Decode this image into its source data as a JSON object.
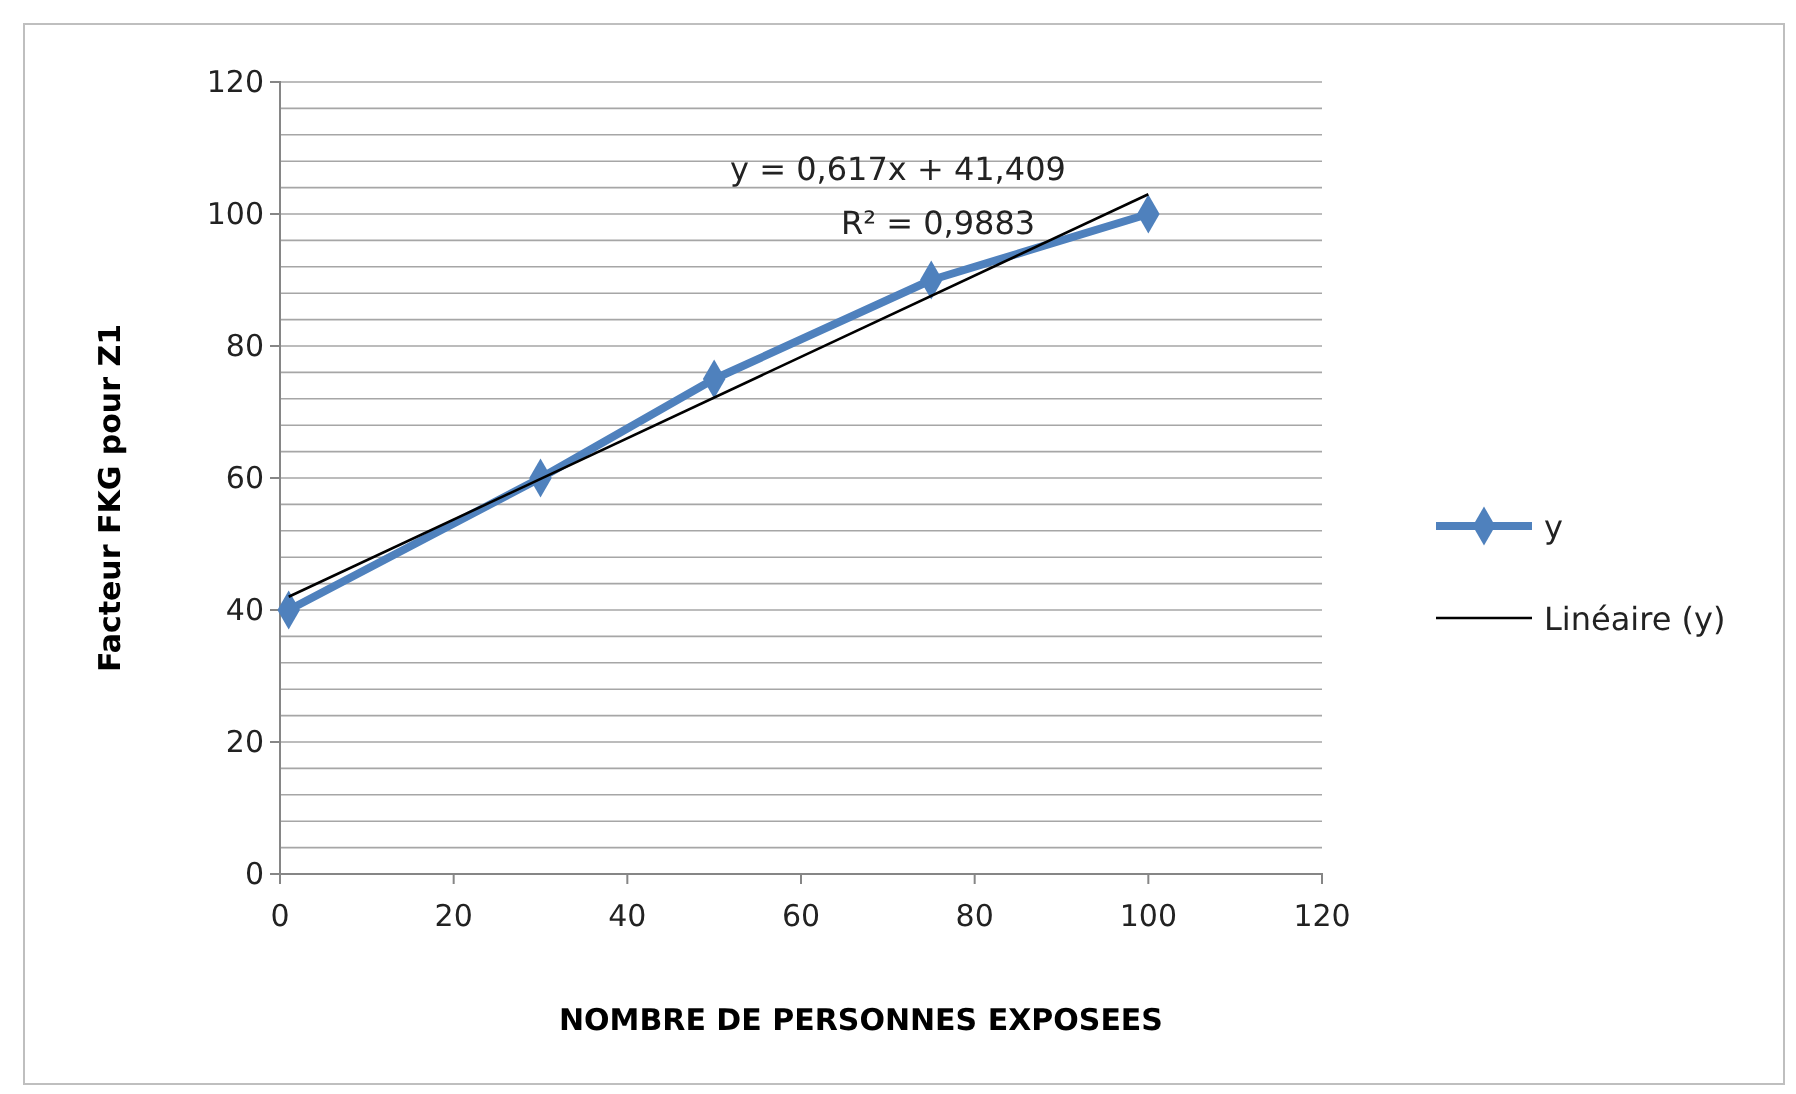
{
  "chart_data": {
    "type": "line",
    "xlabel": "NOMBRE DE PERSONNES EXPOSEES",
    "ylabel": "Facteur FKG pour Z1",
    "xlim": [
      0,
      120
    ],
    "xticks": [
      0,
      20,
      40,
      60,
      80,
      100,
      120
    ],
    "ylim": [
      0,
      120
    ],
    "yticks": [
      0,
      {
        "value": 4,
        "label": null
      },
      {
        "value": 8,
        "label": null
      },
      {
        "value": 12,
        "label": null
      },
      {
        "value": 16,
        "label": null
      },
      20,
      {
        "value": 24,
        "label": null
      },
      {
        "value": 28,
        "label": null
      },
      {
        "value": 32,
        "label": null
      },
      {
        "value": 36,
        "label": null
      },
      40,
      {
        "value": 44,
        "label": null
      },
      {
        "value": 48,
        "label": null
      },
      {
        "value": 52,
        "label": null
      },
      {
        "value": 56,
        "label": null
      },
      60,
      {
        "value": 64,
        "label": null
      },
      {
        "value": 68,
        "label": null
      },
      {
        "value": 72,
        "label": null
      },
      {
        "value": 76,
        "label": null
      },
      80,
      {
        "value": 84,
        "label": null
      },
      {
        "value": 88,
        "label": null
      },
      {
        "value": 92,
        "label": null
      },
      {
        "value": 96,
        "label": null
      },
      100,
      {
        "value": 104,
        "label": null
      },
      {
        "value": 108,
        "label": null
      },
      {
        "value": 112,
        "label": null
      },
      {
        "value": 116,
        "label": null
      },
      120
    ],
    "grid": "y",
    "legend": "right",
    "series": [
      {
        "name": "y",
        "color": "#4f81bd",
        "x": [
          1,
          30,
          50,
          75,
          100
        ],
        "values": [
          40,
          60,
          75,
          90,
          100
        ],
        "marker": "diamond"
      },
      {
        "name": "Linéaire (y)",
        "color": "#000000",
        "x": [
          1,
          100
        ],
        "values": [
          42,
          103
        ],
        "marker": "none"
      }
    ],
    "annotations": [
      "y = 0,617x + 41,409",
      "R² = 0,9883"
    ]
  }
}
